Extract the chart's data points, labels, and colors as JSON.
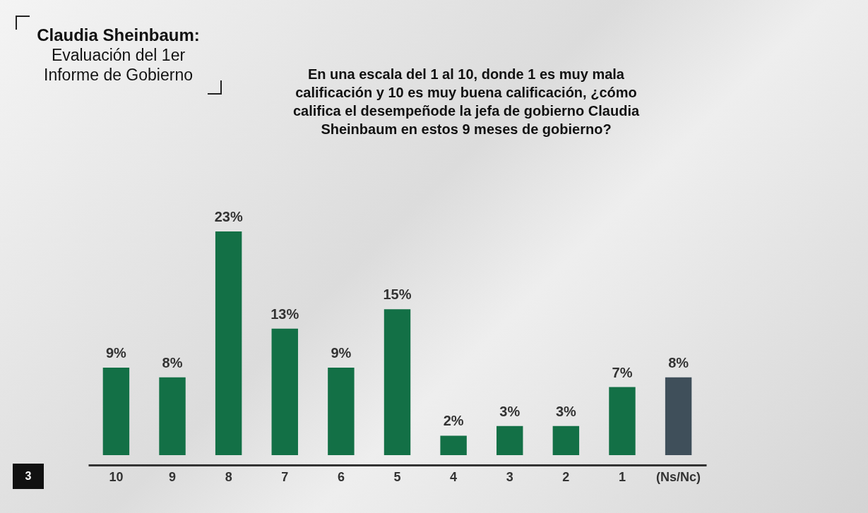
{
  "chart_data": {
    "type": "bar",
    "title": "Claudia Sheinbaum:",
    "subtitle": "Evaluación del 1er Informe de Gobierno",
    "annotations": [
      "En una escala del 1 al 10, donde 1 es muy mala calificación y 10 es muy buena calificación, ¿cómo califica el desempeñode la jefa de gobierno Claudia Sheinbaum en estos 9 meses de gobierno?",
      "3"
    ],
    "categories": [
      "10",
      "9",
      "8",
      "7",
      "6",
      "5",
      "4",
      "3",
      "2",
      "1",
      "(Ns/Nc)"
    ],
    "values": [
      9,
      8,
      23,
      13,
      9,
      15,
      2,
      3,
      3,
      7,
      8
    ],
    "value_labels": [
      "9%",
      "8%",
      "23%",
      "13%",
      "9%",
      "15%",
      "2%",
      "3%",
      "3%",
      "7%",
      "8%"
    ],
    "colors": [
      "#137046",
      "#137046",
      "#137046",
      "#137046",
      "#137046",
      "#137046",
      "#137046",
      "#137046",
      "#137046",
      "#137046",
      "#3f4f5a"
    ]
  }
}
